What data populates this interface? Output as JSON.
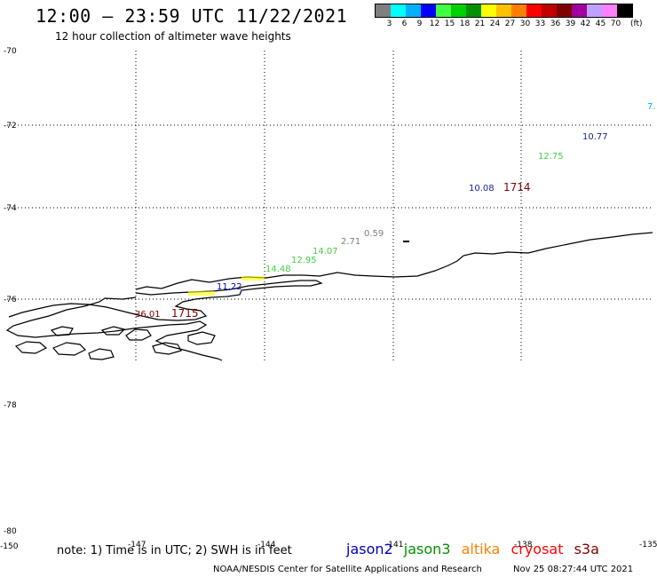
{
  "header": {
    "title": "12:00 – 23:59 UTC 11/22/2021",
    "subtitle": "12 hour collection of altimeter wave heights"
  },
  "legend": {
    "colors": [
      "#7f7f7f",
      "#00ffff",
      "#00b0ff",
      "#0000ff",
      "#40ff40",
      "#00d000",
      "#009000",
      "#ffff00",
      "#ffc000",
      "#ff8000",
      "#ff0000",
      "#c00000",
      "#800000",
      "#a000a0",
      "#c0a0ff",
      "#ff80ff",
      "#000000"
    ],
    "labels": [
      "3",
      "6",
      "9",
      "12",
      "15",
      "18",
      "21",
      "24",
      "27",
      "30",
      "33",
      "36",
      "39",
      "42",
      "45",
      "70"
    ],
    "unit": "(ft)"
  },
  "axes": {
    "lat_labels": [
      "-70",
      "-72",
      "-74",
      "-76",
      "-78",
      "-80"
    ],
    "lon_labels": [
      "-150",
      "-147",
      "-144",
      "-141",
      "-138",
      "-135"
    ]
  },
  "observations": [
    {
      "text": "10.77",
      "color": "#2020a0"
    },
    {
      "text": "12.75",
      "color": "#40d040"
    },
    {
      "text": "10.08",
      "color": "#2020a0"
    },
    {
      "text": "1714",
      "color": "#800000"
    },
    {
      "text": "0.59",
      "color": "#7f7f7f"
    },
    {
      "text": "2.71",
      "color": "#7f7f7f"
    },
    {
      "text": "14.07",
      "color": "#40d040"
    },
    {
      "text": "12.95",
      "color": "#40d040"
    },
    {
      "text": "14.48",
      "color": "#40d040"
    },
    {
      "text": "11.22",
      "color": "#0000c0"
    },
    {
      "text": "1715",
      "color": "#800000"
    },
    {
      "text": "36.01",
      "color": "#800000"
    },
    {
      "text": "7.",
      "color": "#00b0ff"
    }
  ],
  "footer": {
    "note": "note: 1) Time is in UTC; 2) SWH is in feet",
    "satellites": [
      {
        "name": "jason2",
        "color": "#0000c0"
      },
      {
        "name": "jason3",
        "color": "#009000"
      },
      {
        "name": "altika",
        "color": "#ff8000"
      },
      {
        "name": "cryosat",
        "color": "#ff0000"
      },
      {
        "name": "s3a",
        "color": "#800000"
      }
    ],
    "credit": "NOAA/NESDIS Center for Satellite Applications and Research",
    "timestamp": "Nov 25 08:27:44 UTC 2021"
  }
}
